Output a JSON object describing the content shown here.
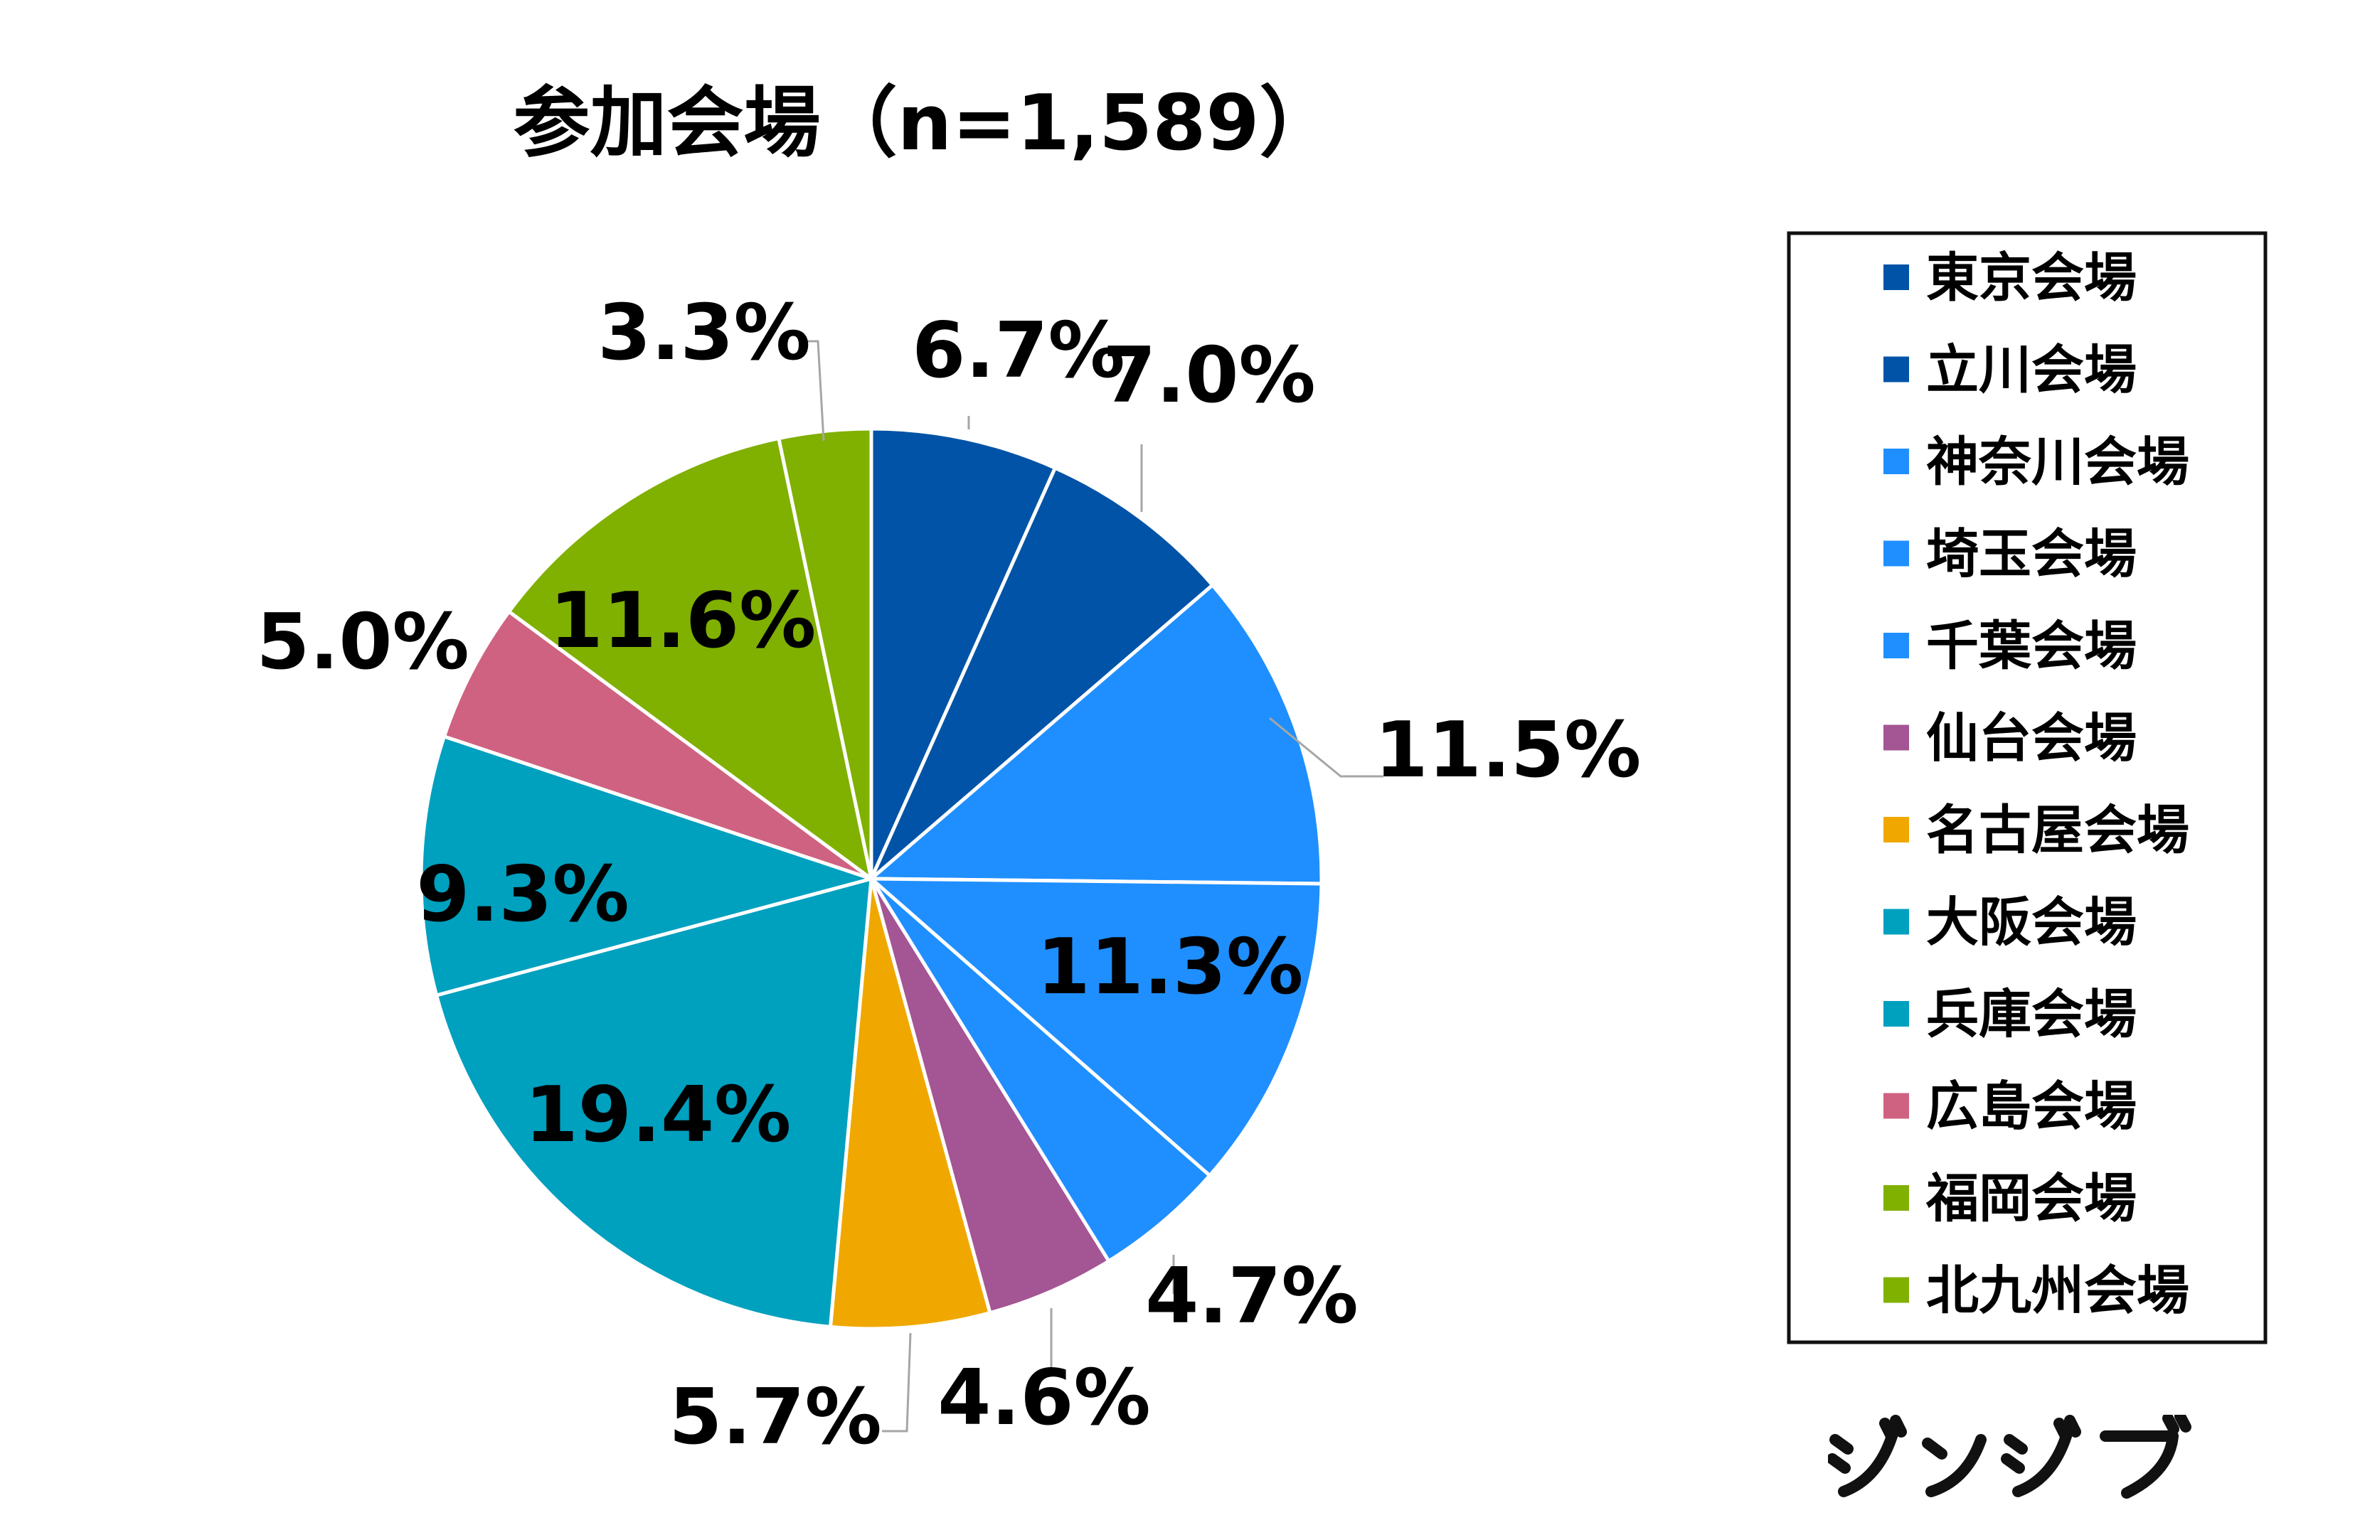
{
  "chart_data": {
    "type": "pie",
    "title": "参加会場（n=1,589）",
    "slices": [
      {
        "label": "東京会場",
        "value": 6.7,
        "display": "6.7%",
        "color": "#0053a6"
      },
      {
        "label": "立川会場",
        "value": 7.0,
        "display": "7.0%",
        "color": "#0053a6"
      },
      {
        "label": "神奈川会場",
        "value": 11.5,
        "display": "11.5%",
        "color": "#1f8fff"
      },
      {
        "label": "埼玉会場",
        "value": 11.3,
        "display": "11.3%",
        "color": "#1f8fff"
      },
      {
        "label": "千葉会場",
        "value": 4.7,
        "display": "4.7%",
        "color": "#1f8fff"
      },
      {
        "label": "仙台会場",
        "value": 4.6,
        "display": "4.6%",
        "color": "#a45593"
      },
      {
        "label": "名古屋会場",
        "value": 5.7,
        "display": "5.7%",
        "color": "#f0a800"
      },
      {
        "label": "大阪会場",
        "value": 19.4,
        "display": "19.4%",
        "color": "#00a0bf"
      },
      {
        "label": "兵庫会場",
        "value": 9.3,
        "display": "9.3%",
        "color": "#00a0bf"
      },
      {
        "label": "広島会場",
        "value": 5.0,
        "display": "5.0%",
        "color": "#cf6281"
      },
      {
        "label": "福岡会場",
        "value": 11.6,
        "display": "11.6%",
        "color": "#80b000"
      },
      {
        "label": "北九州会場",
        "value": 3.3,
        "display": "3.3%",
        "color": "#80b000"
      }
    ],
    "legend_position": "right"
  },
  "brand": {
    "logo_text": "ジンジブ"
  }
}
